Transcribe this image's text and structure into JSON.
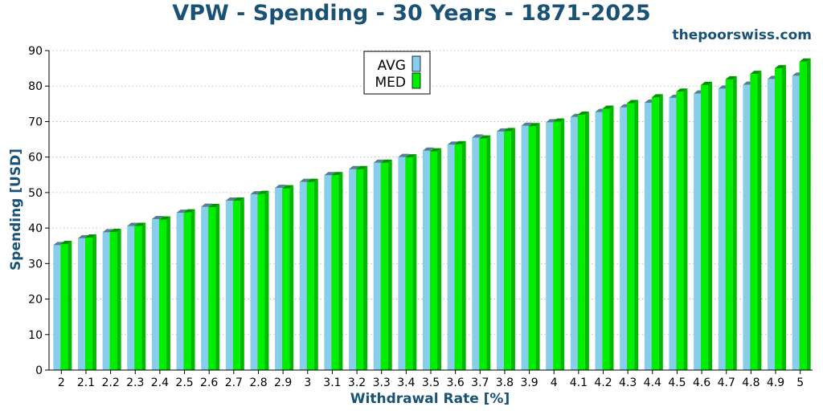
{
  "header": {
    "title": "VPW - Spending - 30 Years - 1871-2025",
    "watermark": "thepoorswiss.com"
  },
  "colors": {
    "avg": "#87ceeb",
    "med": "#00ee00",
    "text_accent": "#1a5276"
  },
  "chart_data": {
    "type": "bar",
    "title": "VPW - Spending - 30 Years - 1871-2025",
    "xlabel": "Withdrawal Rate [%]",
    "ylabel": "Spending [USD]",
    "ylim": [
      0,
      90
    ],
    "yticks": [
      0,
      10,
      20,
      30,
      40,
      50,
      60,
      70,
      80,
      90
    ],
    "grid": "horizontal dotted",
    "legend_position": "top-center",
    "categories": [
      "2",
      "2.1",
      "2.2",
      "2.3",
      "2.4",
      "2.5",
      "2.6",
      "2.7",
      "2.8",
      "2.9",
      "3",
      "3.1",
      "3.2",
      "3.3",
      "3.4",
      "3.5",
      "3.6",
      "3.7",
      "3.8",
      "3.9",
      "4",
      "4.1",
      "4.2",
      "4.3",
      "4.4",
      "4.5",
      "4.6",
      "4.7",
      "4.8",
      "4.9",
      "5"
    ],
    "series": [
      {
        "name": "AVG",
        "values": [
          35.2,
          37.1,
          38.8,
          40.6,
          42.5,
          44.3,
          46.0,
          47.7,
          49.5,
          51.3,
          53.0,
          54.9,
          56.6,
          58.4,
          60.0,
          61.8,
          63.5,
          65.5,
          67.2,
          68.8,
          69.8,
          71.3,
          72.7,
          74.0,
          75.3,
          76.7,
          77.9,
          79.3,
          80.4,
          82.0,
          82.9
        ]
      },
      {
        "name": "MED",
        "values": [
          35.5,
          37.3,
          38.9,
          40.6,
          42.4,
          44.4,
          45.9,
          47.7,
          49.6,
          51.2,
          53.0,
          54.9,
          56.6,
          58.4,
          59.9,
          61.6,
          63.6,
          65.2,
          67.3,
          68.7,
          70.0,
          71.9,
          73.6,
          75.2,
          76.8,
          78.4,
          80.3,
          81.9,
          83.4,
          85.0,
          86.9
        ]
      }
    ]
  }
}
